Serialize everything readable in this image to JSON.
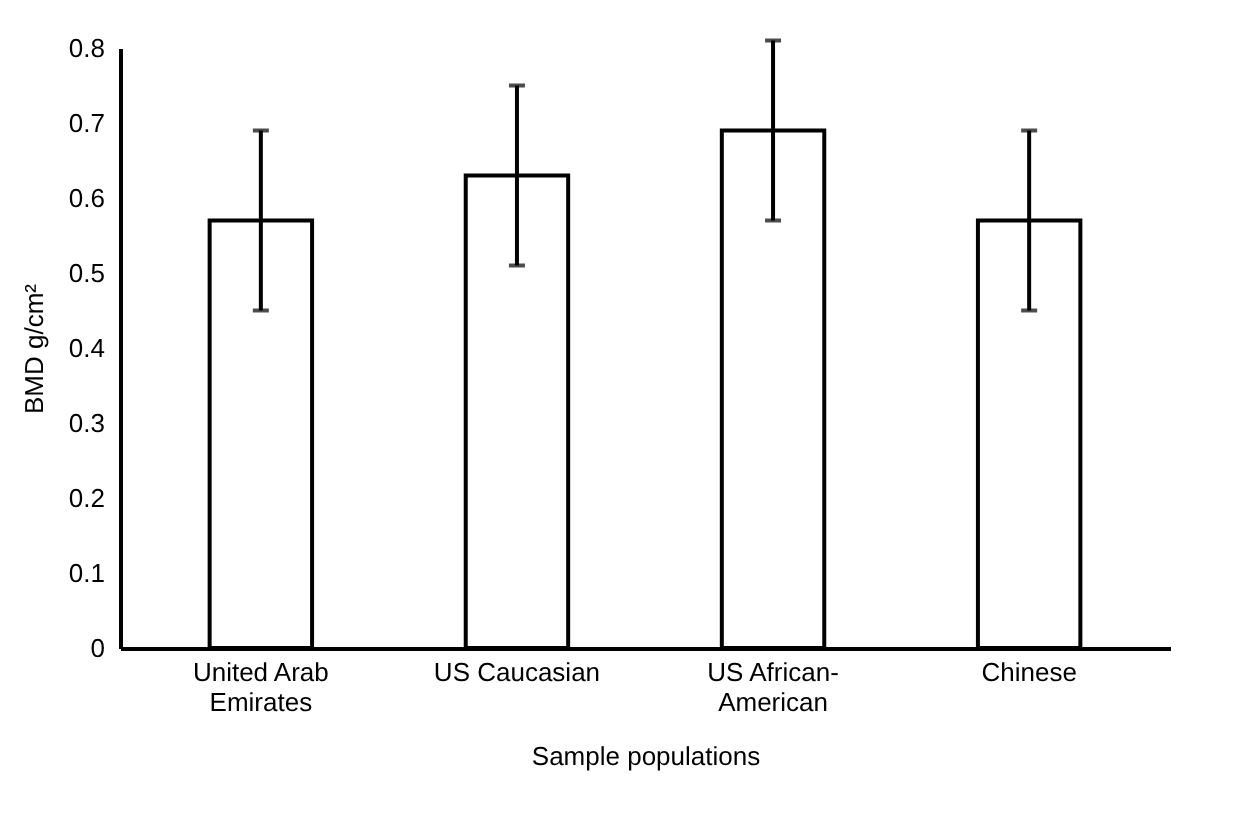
{
  "chart_data": {
    "type": "bar",
    "xlabel": "Sample populations",
    "ylabel": "BMD g/cm²",
    "categories": [
      "United Arab Emirates",
      "US Caucasian",
      "US African-American",
      "Chinese"
    ],
    "values": [
      0.57,
      0.63,
      0.69,
      0.57
    ],
    "errors": [
      0.12,
      0.12,
      0.12,
      0.12
    ],
    "color": "#ffffff",
    "ylim": [
      0,
      0.8
    ],
    "yticks": [
      0,
      0.1,
      0.2,
      0.3,
      0.4,
      0.5,
      0.6,
      0.7,
      0.8
    ],
    "grid": false
  }
}
